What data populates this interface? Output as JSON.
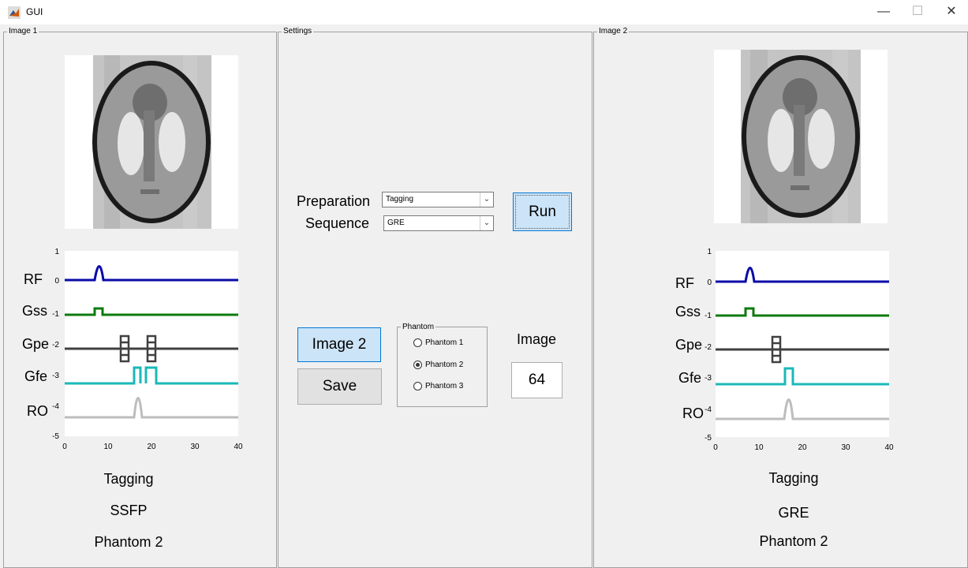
{
  "window": {
    "title": "GUI",
    "minimize": "—",
    "maximize": "☐",
    "close": "✕"
  },
  "image1": {
    "panel_label": "Image 1",
    "channels": [
      "RF",
      "Gss",
      "Gpe",
      "Gfe",
      "RO"
    ],
    "y_ticks": [
      "1",
      "0",
      "-1",
      "-2",
      "-3",
      "-4",
      "-5"
    ],
    "x_ticks": [
      "0",
      "10",
      "20",
      "30",
      "40"
    ],
    "caption_prep": "Tagging",
    "caption_seq": "SSFP",
    "caption_phantom": "Phantom 2"
  },
  "settings": {
    "panel_label": "Settings",
    "preparation_label": "Preparation",
    "preparation_value": "Tagging",
    "sequence_label": "Sequence",
    "sequence_value": "GRE",
    "run_label": "Run",
    "image2_label": "Image 2",
    "save_label": "Save",
    "phantom_group_label": "Phantom",
    "phantom_options": [
      "Phantom 1",
      "Phantom 2",
      "Phantom 3"
    ],
    "phantom_selected": "Phantom 2",
    "image_label": "Image",
    "image_value": "64"
  },
  "image2": {
    "panel_label": "Image 2",
    "channels": [
      "RF",
      "Gss",
      "Gpe",
      "Gfe",
      "RO"
    ],
    "y_ticks": [
      "1",
      "0",
      "-1",
      "-2",
      "-3",
      "-4",
      "-5"
    ],
    "x_ticks": [
      "0",
      "10",
      "20",
      "30",
      "40"
    ],
    "caption_prep": "Tagging",
    "caption_seq": "GRE",
    "caption_phantom": "Phantom 2"
  },
  "colors": {
    "rf": "#0a0aa8",
    "gss": "#0d7a0d",
    "gpe": "#404040",
    "gfe": "#1bb8b8",
    "ro": "#bdbdbd",
    "button_blue": "#cce4f7"
  }
}
